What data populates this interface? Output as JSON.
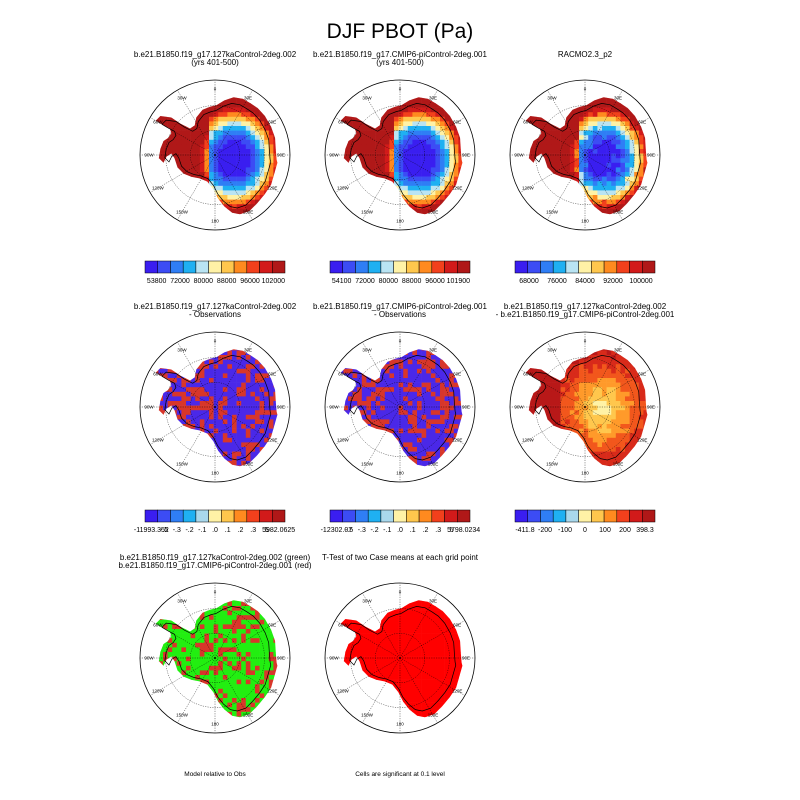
{
  "title": "DJF PBOT (Pa)",
  "longitude_labels": [
    "0",
    "30E",
    "60E",
    "90E",
    "120E",
    "150E",
    "180",
    "150W",
    "120W",
    "90W",
    "60W",
    "30W"
  ],
  "palettes": {
    "abs": [
      "#3a1ef0",
      "#3c4cf4",
      "#2f7ef5",
      "#1fb0f2",
      "#b9e4f3",
      "#fff2a6",
      "#ffc74d",
      "#ff8a1f",
      "#f2401c",
      "#d21a1a",
      "#b01818"
    ],
    "diff": [
      "#3a1ef0",
      "#3c4cf4",
      "#2f7ef5",
      "#1fb0f2",
      "#a9d8ec",
      "#fff2a6",
      "#ffc74d",
      "#ff8a1f",
      "#f2401c",
      "#d21a1a",
      "#b01818"
    ]
  },
  "panels": [
    {
      "id": "model1",
      "title_lines": [
        "b.e21.B1850.f19_g17.127kaControl-2deg.002",
        "(yrs 401-500)"
      ],
      "style": "abs",
      "colorbar": {
        "labels": [
          "53800",
          "72000",
          "80000",
          "88000",
          "96000",
          "102000"
        ]
      }
    },
    {
      "id": "model2",
      "title_lines": [
        "b.e21.B1850.f19_g17.CMIP6-piControl-2deg.001",
        "(yrs 401-500)"
      ],
      "style": "abs",
      "colorbar": {
        "labels": [
          "54100",
          "72000",
          "80000",
          "88000",
          "96000",
          "101900"
        ]
      }
    },
    {
      "id": "obs",
      "title_lines": [
        "RACMO2.3_p2"
      ],
      "style": "obs",
      "colorbar": {
        "labels": [
          "68000",
          "76000",
          "84000",
          "92000",
          "100000"
        ]
      }
    },
    {
      "id": "diff1",
      "title_lines": [
        "b.e21.B1850.f19_g17.127kaControl-2deg.002",
        "- Observations"
      ],
      "style": "bias",
      "colorbar": {
        "labels": [
          "-11993.352",
          "-.5",
          "-.3",
          "-.2",
          "-.1",
          ".0",
          ".1",
          ".2",
          ".3",
          ".5",
          "5982.0625"
        ]
      }
    },
    {
      "id": "diff2",
      "title_lines": [
        "b.e21.B1850.f19_g17.CMIP6-piControl-2deg.001",
        "- Observations"
      ],
      "style": "bias",
      "colorbar": {
        "labels": [
          "-12302.07",
          "-.5",
          "-.3",
          "-.2",
          "-.1",
          ".0",
          ".1",
          ".2",
          ".3",
          ".5",
          "5798.0234"
        ]
      }
    },
    {
      "id": "casediff",
      "title_lines": [
        "b.e21.B1850.f19_g17.127kaControl-2deg.002",
        "- b.e21.B1850.f19_g17.CMIP6-piControl-2deg.001"
      ],
      "style": "casediff",
      "colorbar": {
        "labels": [
          "-411.8",
          "-200",
          "-100",
          "0",
          "100",
          "200",
          "398.3"
        ]
      }
    },
    {
      "id": "relobs",
      "title_lines": [
        "b.e21.B1850.f19_g17.127kaControl-2deg.002 (green)",
        "b.e21.B1850.f19_g17.CMIP6-piControl-2deg.001 (red)"
      ],
      "style": "greenred",
      "note": "Model relative to Obs"
    },
    {
      "id": "ttest",
      "title_lines": [
        "T-Test of two Case means at each grid point"
      ],
      "style": "allred",
      "note": "Cells are significant at 0.1 level"
    }
  ],
  "chart_data": {
    "type": "heatmap",
    "projection": "south polar stereographic",
    "variable": "PBOT",
    "season": "DJF",
    "units": "Pa",
    "notes": [
      "Model relative to Obs",
      "Cells are significant at 0.1 level"
    ]
  }
}
